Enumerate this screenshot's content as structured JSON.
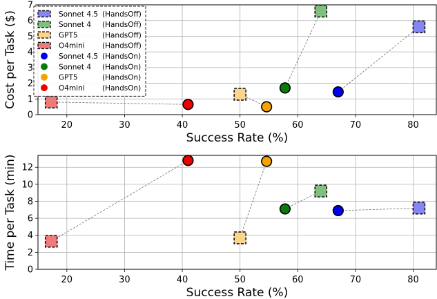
{
  "chart_data": [
    {
      "type": "scatter",
      "xlabel": "Success Rate (%)",
      "ylabel": "Cost per Task ($)",
      "xlim": [
        15,
        84
      ],
      "ylim": [
        0,
        7
      ],
      "xticks": [
        20,
        30,
        40,
        50,
        60,
        70,
        80
      ],
      "yticks": [
        0,
        1,
        2,
        3,
        4,
        5,
        6,
        7
      ],
      "grid": true,
      "legend_position": "top-left",
      "series": [
        {
          "name": "Sonnet 4.5 (HandsOff)",
          "marker": "square",
          "color": "#8585f5",
          "x": [
            81.0
          ],
          "y": [
            5.6
          ]
        },
        {
          "name": "Sonnet 4 (HandsOff)",
          "marker": "square",
          "color": "#7fbf7f",
          "x": [
            64.0
          ],
          "y": [
            6.6
          ]
        },
        {
          "name": "GPT5 (HandsOff)",
          "marker": "square",
          "color": "#fcd48a",
          "x": [
            50.0
          ],
          "y": [
            1.3
          ]
        },
        {
          "name": "O4mini (HandsOff)",
          "marker": "square",
          "color": "#f07a7a",
          "x": [
            17.3
          ],
          "y": [
            0.8
          ]
        },
        {
          "name": "Sonnet 4.5 (HandsOn)",
          "marker": "circle",
          "color": "#0000ee",
          "x": [
            67.0
          ],
          "y": [
            1.45
          ]
        },
        {
          "name": "Sonnet 4 (HandsOn)",
          "marker": "circle",
          "color": "#0a7a0a",
          "x": [
            57.8
          ],
          "y": [
            1.7
          ]
        },
        {
          "name": "GPT5 (HandsOn)",
          "marker": "circle",
          "color": "#f5a300",
          "x": [
            54.6
          ],
          "y": [
            0.5
          ]
        },
        {
          "name": "O4mini (HandsOn)",
          "marker": "circle",
          "color": "#ee0000",
          "x": [
            41.0
          ],
          "y": [
            0.65
          ]
        }
      ],
      "connections": [
        {
          "from": "Sonnet 4.5 (HandsOn)",
          "to": "Sonnet 4.5 (HandsOff)"
        },
        {
          "from": "Sonnet 4 (HandsOn)",
          "to": "Sonnet 4 (HandsOff)"
        },
        {
          "from": "GPT5 (HandsOn)",
          "to": "GPT5 (HandsOff)"
        },
        {
          "from": "O4mini (HandsOn)",
          "to": "O4mini (HandsOff)"
        }
      ],
      "legend": [
        {
          "model": "Sonnet 4.5",
          "mode": "(HandsOff)"
        },
        {
          "model": "Sonnet 4",
          "mode": "(HandsOff)"
        },
        {
          "model": "GPT5",
          "mode": "(HandsOff)"
        },
        {
          "model": "O4mini",
          "mode": "(HandsOff)"
        },
        {
          "model": "Sonnet 4.5",
          "mode": "(HandsOn)"
        },
        {
          "model": "Sonnet 4",
          "mode": "(HandsOn)"
        },
        {
          "model": "GPT5",
          "mode": "(HandsOn)"
        },
        {
          "model": "O4mini",
          "mode": "(HandsOn)"
        }
      ]
    },
    {
      "type": "scatter",
      "xlabel": "Success Rate (%)",
      "ylabel": "Time per Task (min)",
      "xlim": [
        15,
        84
      ],
      "ylim": [
        0,
        13.4
      ],
      "xticks": [
        20,
        30,
        40,
        50,
        60,
        70,
        80
      ],
      "yticks": [
        0,
        2,
        4,
        6,
        8,
        10,
        12
      ],
      "grid": true,
      "legend_position": "none",
      "series": [
        {
          "name": "Sonnet 4.5 (HandsOff)",
          "marker": "square",
          "color": "#8585f5",
          "x": [
            81.0
          ],
          "y": [
            7.2
          ]
        },
        {
          "name": "Sonnet 4 (HandsOff)",
          "marker": "square",
          "color": "#7fbf7f",
          "x": [
            64.0
          ],
          "y": [
            9.2
          ]
        },
        {
          "name": "GPT5 (HandsOff)",
          "marker": "square",
          "color": "#fcd48a",
          "x": [
            50.0
          ],
          "y": [
            3.7
          ]
        },
        {
          "name": "O4mini (HandsOff)",
          "marker": "square",
          "color": "#f07a7a",
          "x": [
            17.3
          ],
          "y": [
            3.3
          ]
        },
        {
          "name": "Sonnet 4.5 (HandsOn)",
          "marker": "circle",
          "color": "#0000ee",
          "x": [
            67.0
          ],
          "y": [
            6.9
          ]
        },
        {
          "name": "Sonnet 4 (HandsOn)",
          "marker": "circle",
          "color": "#0a7a0a",
          "x": [
            57.8
          ],
          "y": [
            7.1
          ]
        },
        {
          "name": "GPT5 (HandsOn)",
          "marker": "circle",
          "color": "#f5a300",
          "x": [
            54.6
          ],
          "y": [
            12.7
          ]
        },
        {
          "name": "O4mini (HandsOn)",
          "marker": "circle",
          "color": "#ee0000",
          "x": [
            41.0
          ],
          "y": [
            12.8
          ]
        }
      ],
      "connections": [
        {
          "from": "Sonnet 4.5 (HandsOn)",
          "to": "Sonnet 4.5 (HandsOff)"
        },
        {
          "from": "Sonnet 4 (HandsOn)",
          "to": "Sonnet 4 (HandsOff)"
        },
        {
          "from": "GPT5 (HandsOn)",
          "to": "GPT5 (HandsOff)"
        },
        {
          "from": "O4mini (HandsOn)",
          "to": "O4mini (HandsOff)"
        }
      ]
    }
  ]
}
